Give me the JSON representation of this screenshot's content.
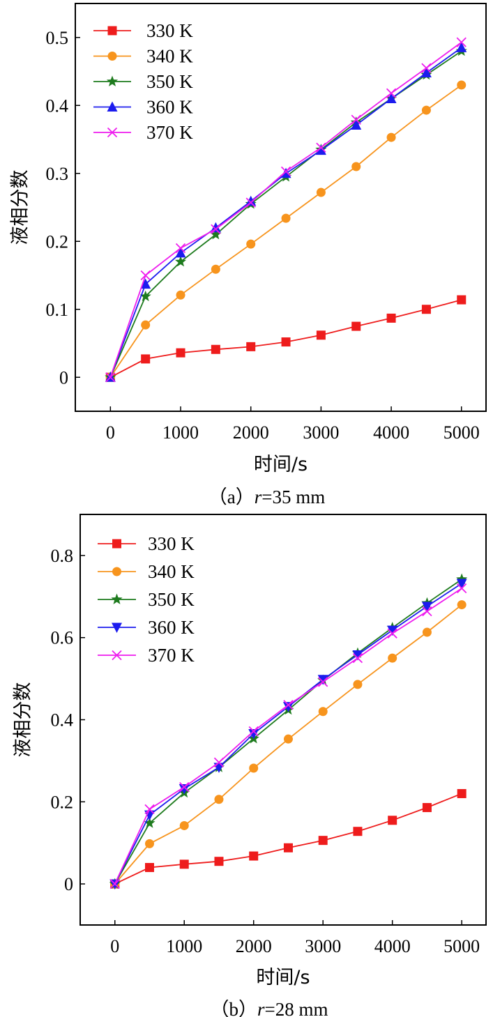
{
  "chart_data": [
    {
      "type": "line",
      "caption_prefix": "（a）",
      "caption_var": "r",
      "caption_suffix": "=35 mm",
      "xlabel": "时间/s",
      "ylabel": "液相分数",
      "xlim": [
        -500,
        5350
      ],
      "ylim": [
        -0.05,
        0.55
      ],
      "xticks": [
        0,
        1000,
        2000,
        3000,
        4000,
        5000
      ],
      "xtick_labels": [
        "0",
        "1000",
        "2000",
        "3000",
        "4000",
        "5000"
      ],
      "yticks": [
        0,
        0.1,
        0.2,
        0.3,
        0.4,
        0.5
      ],
      "ytick_labels": [
        "0",
        "0.1",
        "0.2",
        "0.3",
        "0.4",
        "0.5"
      ],
      "x": [
        0,
        500,
        1000,
        1500,
        2000,
        2500,
        3000,
        3500,
        4000,
        4500,
        5000
      ],
      "series": [
        {
          "name": "330 K",
          "color": "#ee1c1c",
          "marker": "square",
          "values": [
            0,
            0.027,
            0.036,
            0.041,
            0.045,
            0.052,
            0.062,
            0.075,
            0.087,
            0.1,
            0.114
          ]
        },
        {
          "name": "340 K",
          "color": "#f7941d",
          "marker": "circle",
          "values": [
            0,
            0.077,
            0.121,
            0.159,
            0.196,
            0.234,
            0.272,
            0.31,
            0.353,
            0.393,
            0.43
          ]
        },
        {
          "name": "350 K",
          "color": "#1e7b1e",
          "marker": "star",
          "values": [
            0,
            0.119,
            0.17,
            0.21,
            0.255,
            0.295,
            0.335,
            0.375,
            0.41,
            0.445,
            0.48
          ]
        },
        {
          "name": "360 K",
          "color": "#1c1cee",
          "marker": "triangle-up",
          "values": [
            0,
            0.137,
            0.183,
            0.22,
            0.259,
            0.3,
            0.334,
            0.371,
            0.41,
            0.448,
            0.485
          ]
        },
        {
          "name": "370 K",
          "color": "#ee1cee",
          "marker": "x",
          "values": [
            0,
            0.15,
            0.19,
            0.218,
            0.257,
            0.303,
            0.338,
            0.379,
            0.418,
            0.455,
            0.493
          ]
        }
      ]
    },
    {
      "type": "line",
      "caption_prefix": "（b）",
      "caption_var": "r",
      "caption_suffix": "=28 mm",
      "xlabel": "时间/s",
      "ylabel": "液相分数",
      "xlim": [
        -500,
        5350
      ],
      "ylim": [
        -0.1,
        0.9
      ],
      "xticks": [
        0,
        1000,
        2000,
        3000,
        4000,
        5000
      ],
      "xtick_labels": [
        "0",
        "1000",
        "2000",
        "3000",
        "4000",
        "5000"
      ],
      "yticks": [
        0,
        0.2,
        0.4,
        0.6,
        0.8
      ],
      "ytick_labels": [
        "0",
        "0.2",
        "0.4",
        "0.6",
        "0.8"
      ],
      "x": [
        0,
        500,
        1000,
        1500,
        2000,
        2500,
        3000,
        3500,
        4000,
        4500,
        5000
      ],
      "series": [
        {
          "name": "330 K",
          "color": "#ee1c1c",
          "marker": "square",
          "values": [
            0,
            0.04,
            0.048,
            0.055,
            0.068,
            0.088,
            0.106,
            0.128,
            0.155,
            0.186,
            0.22
          ]
        },
        {
          "name": "340 K",
          "color": "#f7941d",
          "marker": "circle",
          "values": [
            0,
            0.098,
            0.142,
            0.206,
            0.282,
            0.353,
            0.42,
            0.486,
            0.55,
            0.613,
            0.68
          ]
        },
        {
          "name": "350 K",
          "color": "#1e7b1e",
          "marker": "star",
          "values": [
            0,
            0.148,
            0.222,
            0.284,
            0.354,
            0.424,
            0.496,
            0.562,
            0.624,
            0.684,
            0.742
          ]
        },
        {
          "name": "360 K",
          "color": "#1c1cee",
          "marker": "triangle-down",
          "values": [
            0,
            0.168,
            0.232,
            0.284,
            0.366,
            0.432,
            0.498,
            0.558,
            0.618,
            0.676,
            0.732
          ]
        },
        {
          "name": "370 K",
          "color": "#ee1cee",
          "marker": "x",
          "values": [
            0,
            0.182,
            0.236,
            0.296,
            0.372,
            0.436,
            0.492,
            0.55,
            0.61,
            0.664,
            0.72
          ]
        }
      ]
    }
  ]
}
